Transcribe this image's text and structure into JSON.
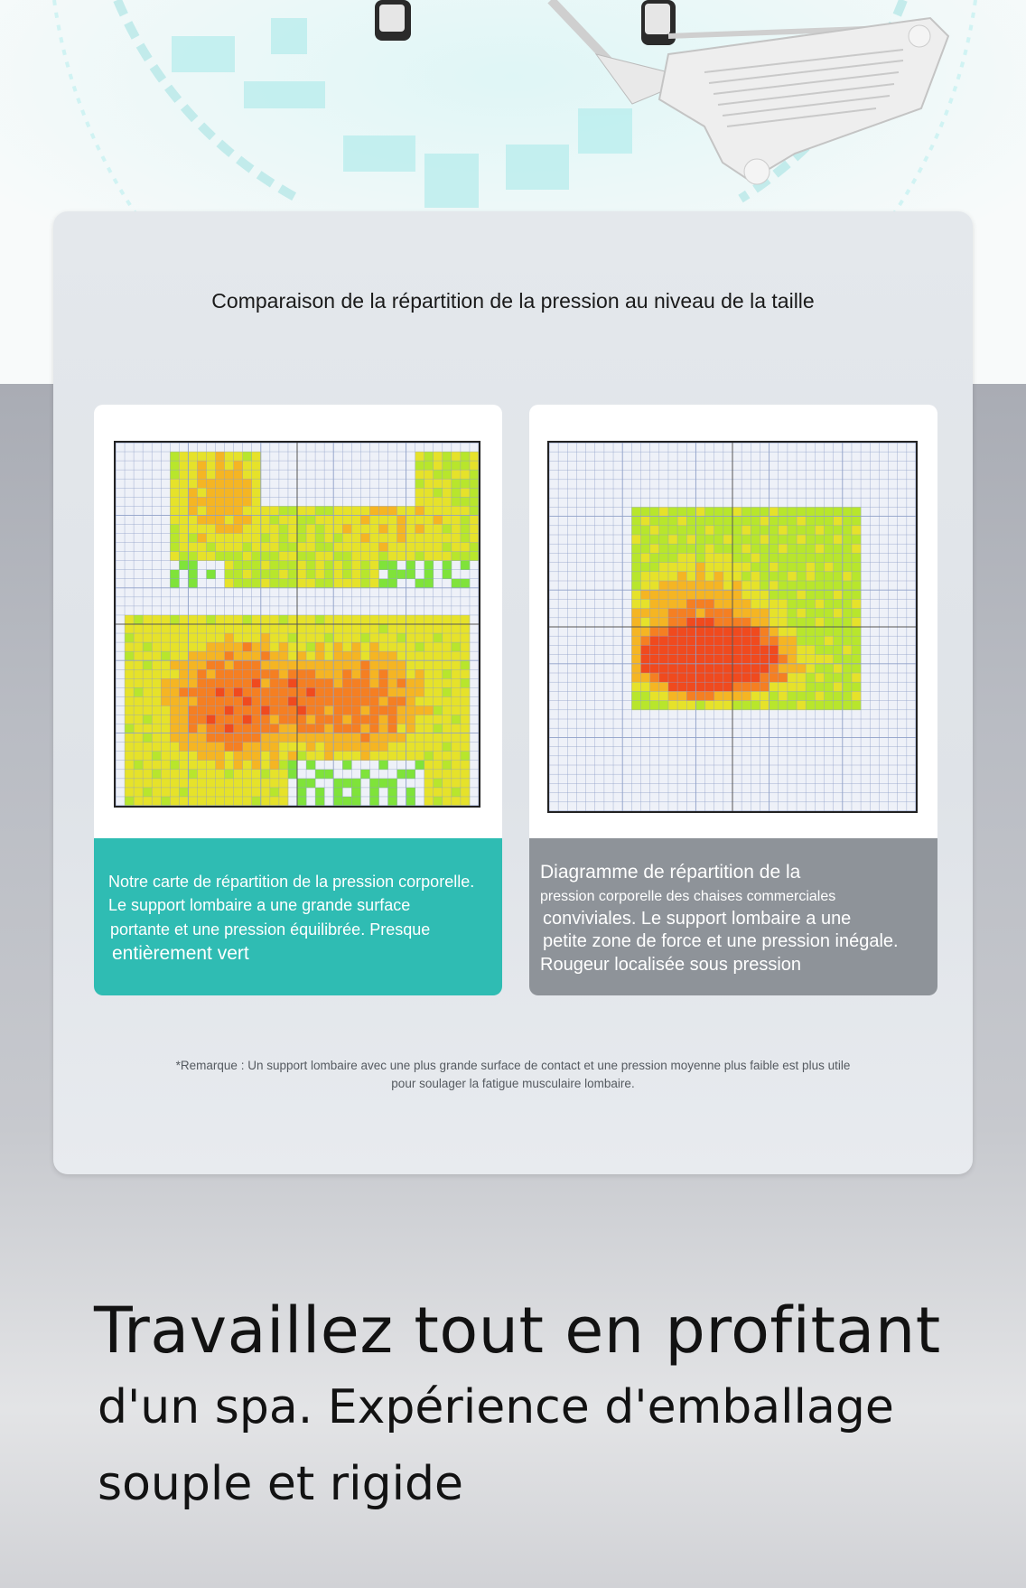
{
  "panel": {
    "title": "Comparaison de la répartition de la pression au niveau de la taille",
    "note_line1": "*Remarque : Un support lombaire avec une plus grande surface de contact et une pression moyenne plus faible est plus utile",
    "note_line2": "pour soulager la fatigue musculaire lombaire."
  },
  "left_card": {
    "caption_lines": [
      "Notre carte de répartition de la pression corporelle.",
      "Le support lombaire a une grande surface",
      "portante et une pression équilibrée. Presque",
      "entièrement vert"
    ],
    "caption_color": "#2fbcb3"
  },
  "right_card": {
    "caption_lines": [
      "Diagramme de répartition de la",
      "pression corporelle des chaises commerciales",
      "conviviales. Le support lombaire a une",
      "petite zone de force et une pression inégale.",
      "Rougeur localisée sous pression"
    ],
    "caption_color": "#8e9399"
  },
  "headline": {
    "line1": "Travaillez tout en profitant",
    "line2": "d'un spa. Expérience d'emballage",
    "line3": "souple et rigide"
  },
  "heatmap_colors": [
    "#7fe33a",
    "#b8e62c",
    "#e6e22a",
    "#f5b523",
    "#f57f22",
    "#f04a1e"
  ],
  "grid_color": "#8fa0c8"
}
